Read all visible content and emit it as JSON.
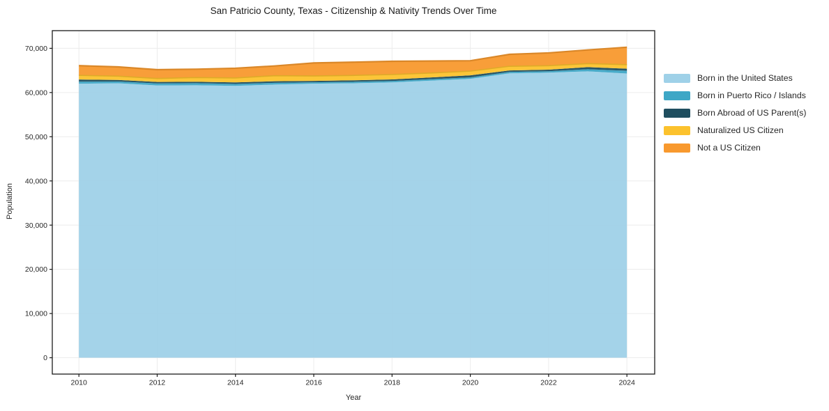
{
  "chart_data": {
    "type": "area",
    "stacked": true,
    "title": "San Patricio County, Texas - Citizenship & Nativity Trends Over Time",
    "xlabel": "Year",
    "ylabel": "Population",
    "x": [
      2010,
      2011,
      2012,
      2013,
      2014,
      2015,
      2016,
      2017,
      2018,
      2019,
      2020,
      2021,
      2022,
      2023,
      2024
    ],
    "series": [
      {
        "name": "Born in the United States",
        "color": "#9fd1e8",
        "values": [
          62000,
          62100,
          61600,
          61650,
          61500,
          61800,
          62000,
          62100,
          62300,
          62700,
          63100,
          64350,
          64500,
          64800,
          64300
        ]
      },
      {
        "name": "Born in Puerto Rico / Islands",
        "color": "#3ea7c6",
        "values": [
          470,
          400,
          470,
          470,
          450,
          400,
          320,
          320,
          320,
          320,
          320,
          320,
          320,
          470,
          630
        ]
      },
      {
        "name": "Born Abroad of US Parent(s)",
        "color": "#1f4e5f",
        "values": [
          470,
          350,
          320,
          320,
          350,
          350,
          320,
          350,
          350,
          400,
          470,
          320,
          350,
          470,
          470
        ]
      },
      {
        "name": "Naturalized US Citizen",
        "color": "#fcc22d",
        "values": [
          940,
          850,
          790,
          950,
          1000,
          1260,
          1100,
          1100,
          1100,
          1000,
          950,
          950,
          900,
          800,
          900
        ]
      },
      {
        "name": "Not a US Citizen",
        "color": "#f8992e",
        "values": [
          2200,
          2100,
          2000,
          1890,
          2200,
          2200,
          2950,
          3000,
          3000,
          2700,
          2350,
          2700,
          2900,
          3100,
          3950
        ]
      }
    ],
    "xticks": [
      2010,
      2012,
      2014,
      2016,
      2018,
      2020,
      2022,
      2024
    ],
    "yticks": [
      0,
      10000,
      20000,
      30000,
      40000,
      50000,
      60000,
      70000
    ],
    "xlim": [
      2009.32,
      2024.71
    ],
    "ylim": [
      -3700,
      74000
    ],
    "grid": true,
    "legend_position": "right",
    "axis_color": "#1a1a1a",
    "grid_color": "#ececec",
    "tick_label_color": "#262626"
  }
}
